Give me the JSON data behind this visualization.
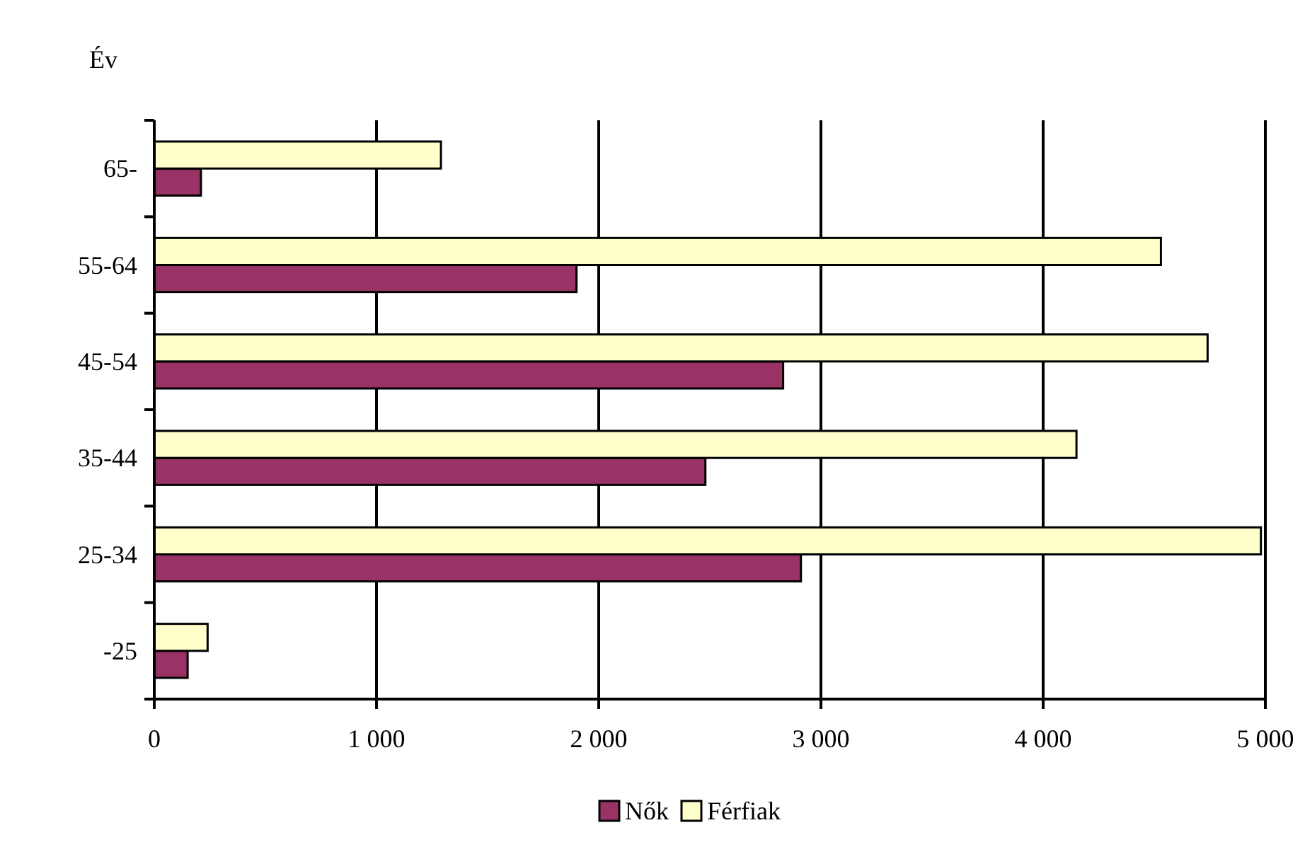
{
  "chart_data": {
    "type": "bar",
    "orientation": "horizontal",
    "ylabel": "Év",
    "categories": [
      "65-",
      "55-64",
      "45-54",
      "35-44",
      "25-34",
      "-25"
    ],
    "series": [
      {
        "name": "Nők",
        "color": "#993366",
        "values": [
          210,
          1900,
          2830,
          2480,
          2910,
          150
        ]
      },
      {
        "name": "Férfiak",
        "color": "#ffffcc",
        "values": [
          1290,
          4530,
          4740,
          4150,
          4980,
          240
        ]
      }
    ],
    "xlim": [
      0,
      5000
    ],
    "xticks": [
      0,
      {
        "value": 1000,
        "label": "1 000"
      },
      {
        "value": 2000,
        "label": "2 000"
      },
      {
        "value": 3000,
        "label": "3 000"
      },
      {
        "value": 4000,
        "label": "4 000"
      },
      {
        "value": 5000,
        "label": "5 000"
      }
    ],
    "grid": "x",
    "legend": "bottom"
  }
}
